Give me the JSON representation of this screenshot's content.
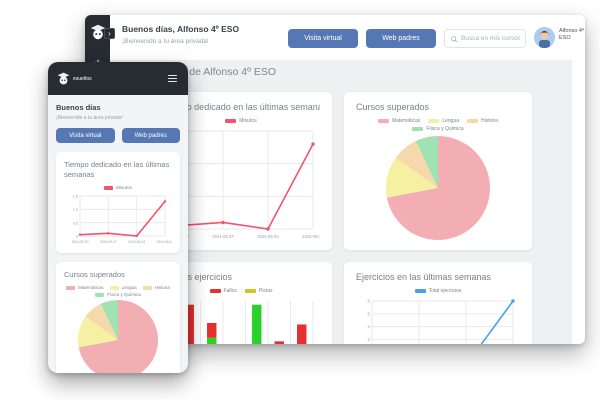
{
  "desktop": {
    "sidebar": {
      "logo": "robot-graduate-logo",
      "power": "power-icon",
      "expand": "›"
    },
    "header": {
      "greeting": "Buenos días, Alfonso 4º ESO",
      "welcome": "¡Bienvenido a tu área privada!",
      "visita_button": "Visita virtual",
      "web_button": "Web padres",
      "search_placeholder": "Busca en mis cursos",
      "user_name": "Alfonso 4º ESO"
    },
    "page_title": "Evaluación de Alfonso 4º ESO"
  },
  "mobile": {
    "brand": "esueltos",
    "greeting": "Buenos días",
    "welcome": "¡Bienvenido a tu área privada!",
    "visita_button": "Visita virtual",
    "web_button": "Web padres"
  },
  "colors": {
    "dark": "#272c33",
    "accent_blue_button": "#5578b4",
    "line_red": "#f2546e",
    "line_blue": "#45a3e8",
    "bar_green": "#2bd02b",
    "bar_red": "#e53030",
    "legend_yellow": "#d8c21f"
  },
  "chart_data": {
    "tiempo": {
      "type": "line",
      "title": "Tiempo dedicado en las últimas semanas",
      "legend": [
        {
          "label": "Minutos",
          "color": "#f2546e"
        }
      ],
      "categories": [
        "2024-05-20",
        "2024-05-27",
        "2024-06-03",
        "2024-06-10"
      ],
      "series": [
        {
          "name": "Minutos",
          "color": "#f2546e",
          "values": [
            0.05,
            0.1,
            0,
            1.3
          ]
        }
      ],
      "ylim": [
        0,
        1.5
      ],
      "yticks": [
        {
          "v": 0,
          "label": "0"
        },
        {
          "v": 0.5,
          "label": "0,5"
        },
        {
          "v": 1,
          "label": "1,0"
        },
        {
          "v": 1.5,
          "label": "1,5"
        }
      ],
      "show_x_labels": true,
      "grid": true,
      "legend_position": "top"
    },
    "cursos": {
      "type": "pie",
      "title": "Cursos superados",
      "labels": [
        "Matemáticas",
        "Lengua",
        "Historia",
        "Física y Química"
      ],
      "values": [
        72,
        13,
        8,
        7
      ],
      "colors": [
        "#f2aeb3",
        "#f6f0a3",
        "#f5d8ab",
        "#9fe3b4"
      ],
      "legend_position": "top"
    },
    "ultimos": {
      "type": "stacked_bar",
      "title": "Últimos ejercicios",
      "legend": [
        {
          "label": "Fallos",
          "color": "#e53030"
        },
        {
          "label": "Pistas",
          "color": "#d8c21f"
        }
      ],
      "series": [
        {
          "name": "",
          "color": "#2bd02b",
          "values": [
            4.5,
            5.5,
            1.3,
            10,
            3,
            3.3
          ]
        },
        {
          "name": "Fallos",
          "color": "#e53030",
          "values": [
            5.5,
            2,
            1.8,
            0,
            2,
            4
          ]
        }
      ],
      "ylim": [
        0,
        10.5
      ],
      "grid": true,
      "legend_position": "top"
    },
    "semanas": {
      "type": "line",
      "title": "Ejercicios en las últimas semanas",
      "legend": [
        {
          "label": "Total ejercicios",
          "color": "#45a3e8"
        }
      ],
      "categories": [
        "",
        "",
        "",
        ""
      ],
      "series": [
        {
          "name": "Total ejercicios",
          "color": "#45a3e8",
          "values": [
            0,
            0,
            1,
            6
          ]
        }
      ],
      "ylim": [
        0,
        6
      ],
      "yticks": [
        {
          "v": 0,
          "label": "0"
        },
        {
          "v": 1,
          "label": "1"
        },
        {
          "v": 2,
          "label": "2"
        },
        {
          "v": 3,
          "label": "3"
        },
        {
          "v": 4,
          "label": "4"
        },
        {
          "v": 5,
          "label": "5"
        },
        {
          "v": 6,
          "label": "6"
        }
      ],
      "show_x_labels": false,
      "grid": true,
      "legend_position": "top"
    }
  }
}
